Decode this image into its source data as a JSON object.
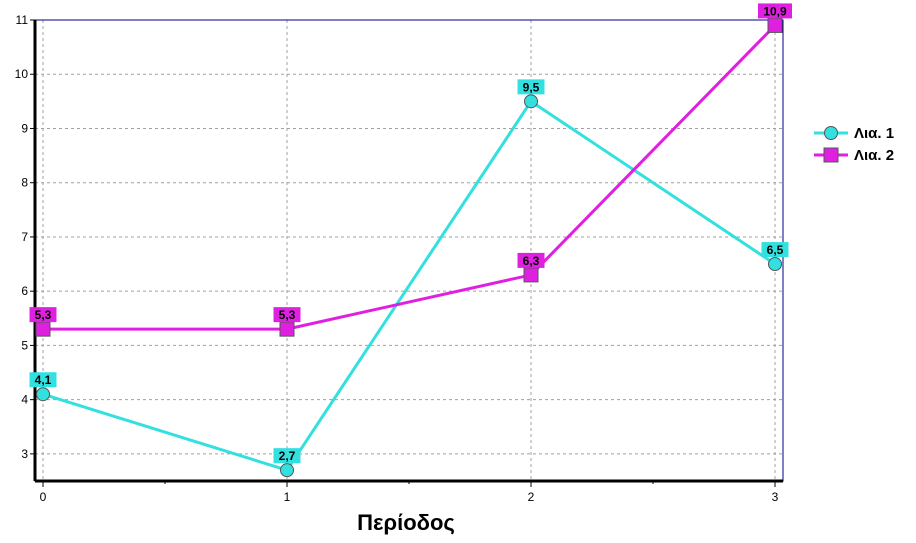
{
  "chart_data": {
    "type": "line",
    "x": [
      0,
      1,
      2,
      3
    ],
    "xticks": [
      "0",
      "1",
      "2",
      "3"
    ],
    "xlabel": "Περίοδος",
    "ylabel": "",
    "title": "",
    "xlim": [
      0,
      3
    ],
    "ylim": [
      2.5,
      11
    ],
    "yticks": [
      "3",
      "4",
      "5",
      "6",
      "7",
      "8",
      "9",
      "10",
      "11"
    ],
    "grid": true,
    "legend_position": "right",
    "series": [
      {
        "name": "Λια. 1",
        "values": [
          4.1,
          2.7,
          9.5,
          6.5
        ],
        "labels": [
          "4,1",
          "2,7",
          "9,5",
          "6,5"
        ],
        "color": "#33e0e0",
        "marker": "circle"
      },
      {
        "name": "Λια. 2",
        "values": [
          5.3,
          5.3,
          6.3,
          10.9
        ],
        "labels": [
          "5,3",
          "5,3",
          "6,3",
          "10,9"
        ],
        "color": "#e020e0",
        "marker": "square"
      }
    ]
  }
}
